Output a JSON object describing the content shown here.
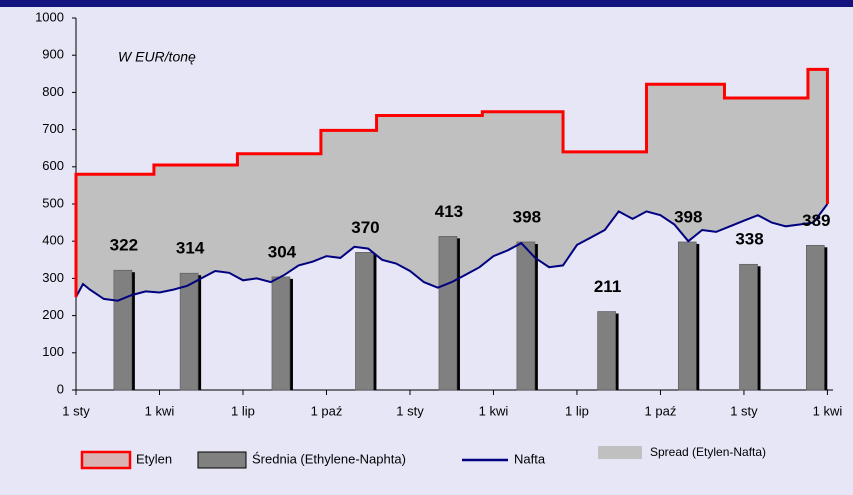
{
  "chart_data": {
    "type": "combo",
    "annotation": "W EUR/tonę",
    "xlim": [
      0,
      27.2
    ],
    "xticks": [
      {
        "value": 0,
        "label": "1 sty"
      },
      {
        "value": 3,
        "label": "1 kwi"
      },
      {
        "value": 6,
        "label": "1 lip"
      },
      {
        "value": 9,
        "label": "1 paź"
      },
      {
        "value": 12,
        "label": "1 sty"
      },
      {
        "value": 15,
        "label": "1 kwi"
      },
      {
        "value": 18,
        "label": "1 lip"
      },
      {
        "value": 21,
        "label": "1 paź"
      },
      {
        "value": 24,
        "label": "1 sty"
      },
      {
        "value": 27,
        "label": "1 kwi"
      }
    ],
    "ylim": [
      0,
      1000
    ],
    "yticks": [
      0,
      100,
      200,
      300,
      400,
      500,
      600,
      700,
      800,
      900,
      1000
    ],
    "grid": false,
    "series": [
      {
        "name": "Etylen",
        "type": "step",
        "color": "#ff0000",
        "x": [
          0,
          2.8,
          5.8,
          8.8,
          10.8,
          14.6,
          17.5,
          20.5,
          23.3,
          26.3,
          27
        ],
        "values": [
          580,
          605,
          635,
          698,
          738,
          748,
          640,
          822,
          785,
          862,
          862
        ]
      },
      {
        "name": "Średnia (Ethylene-Naphta)",
        "type": "bar",
        "color": "#808080",
        "x": [
          1.72,
          4.1,
          7.4,
          10.4,
          13.4,
          16.2,
          19.1,
          22.0,
          24.2,
          26.6
        ],
        "values": [
          322,
          314,
          304,
          370,
          413,
          398,
          211,
          398,
          338,
          389
        ]
      },
      {
        "name": "Nafta",
        "type": "line",
        "color": "#000080",
        "x": [
          0,
          0.25,
          0.5,
          1,
          1.5,
          2,
          2.5,
          3,
          3.5,
          4,
          4.5,
          5,
          5.5,
          6,
          6.5,
          7,
          7.5,
          8,
          8.5,
          9,
          9.5,
          10,
          10.5,
          11,
          11.5,
          12,
          12.5,
          13,
          13.5,
          14,
          14.5,
          15,
          15.5,
          16,
          16.5,
          17,
          17.5,
          18,
          18.5,
          19,
          19.5,
          20,
          20.5,
          21,
          21.5,
          22,
          22.5,
          23,
          23.5,
          24,
          24.5,
          25,
          25.5,
          26,
          26.5,
          27
        ],
        "values": [
          250,
          285,
          270,
          245,
          240,
          255,
          265,
          262,
          270,
          280,
          300,
          320,
          315,
          295,
          300,
          290,
          310,
          335,
          345,
          360,
          355,
          385,
          380,
          350,
          340,
          320,
          290,
          275,
          290,
          310,
          330,
          360,
          375,
          395,
          355,
          330,
          335,
          390,
          410,
          430,
          480,
          460,
          480,
          470,
          445,
          400,
          430,
          425,
          440,
          455,
          470,
          450,
          440,
          445,
          450,
          500
        ]
      }
    ],
    "spread": {
      "name": "Spread (Etylen-Nafta)",
      "color": "#c0c0c0"
    }
  }
}
